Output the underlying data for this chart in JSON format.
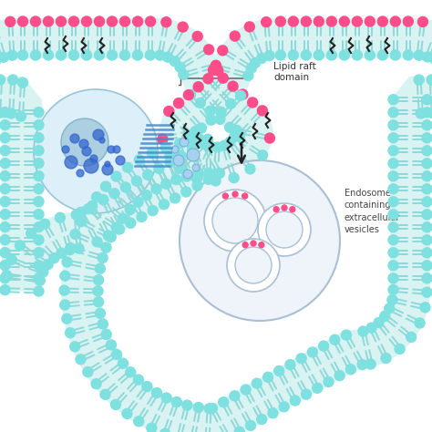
{
  "bg_color": "#ffffff",
  "membrane_color": "#7FE0E0",
  "tail_color": "#90D8D8",
  "pink_head_color": "#FF4D8A",
  "black_protein_color": "#222222",
  "lipid_raft_label": "Lipid raft\ndomain",
  "endosome_label": "Endosome\ncontaining\nextracellular\nvesicles",
  "arrow_color": "#222222",
  "endosome_fill": "#EEF4FA",
  "endosome_border": "#AABFD4",
  "inner_vesicle_border": "#AABFD4",
  "cell_fill": "#D8EEF8",
  "cell_border": "#8ABCD4",
  "nucleus_fill": "#A8CCE0",
  "nucleus_border": "#7AAEC8",
  "blue_dot_color": "#3366CC",
  "golgi_color": "#4488CC",
  "small_ves_fill": "#A8D0F0",
  "small_ves_border": "#7EB0D8"
}
